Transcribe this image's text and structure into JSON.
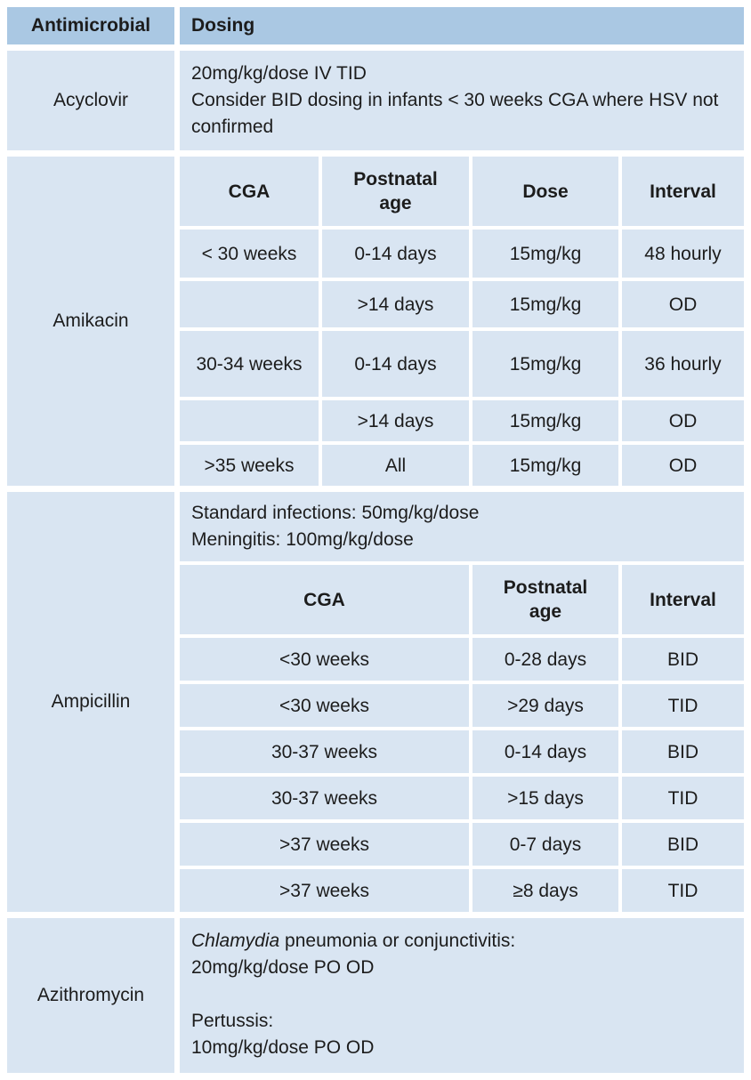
{
  "colors": {
    "header_bg": "#aac8e3",
    "cell_bg": "#d9e5f2",
    "text": "#1c1c1c",
    "page_bg": "#ffffff"
  },
  "header": {
    "antimicrobial": "Antimicrobial",
    "dosing": "Dosing"
  },
  "acyclovir": {
    "name": "Acyclovir",
    "line1": "20mg/kg/dose IV TID",
    "line2": "Consider BID dosing in infants < 30 weeks CGA where HSV not confirmed"
  },
  "amikacin": {
    "name": "Amikacin",
    "headers": [
      "CGA",
      "Postnatal age",
      "Dose",
      "Interval"
    ],
    "rows": [
      [
        "< 30 weeks",
        "0-14 days",
        "15mg/kg",
        "48 hourly"
      ],
      [
        "",
        ">14 days",
        "15mg/kg",
        "OD"
      ],
      [
        "30-34 weeks",
        "0-14 days",
        "15mg/kg",
        "36 hourly"
      ],
      [
        "",
        ">14 days",
        "15mg/kg",
        "OD"
      ],
      [
        ">35 weeks",
        "All",
        "15mg/kg",
        "OD"
      ]
    ]
  },
  "ampicillin": {
    "name": "Ampicillin",
    "line1": "Standard infections: 50mg/kg/dose",
    "line2": "Meningitis: 100mg/kg/dose",
    "headers": [
      "CGA",
      "Postnatal age",
      "Interval"
    ],
    "rows": [
      [
        "<30 weeks",
        "0-28 days",
        "BID"
      ],
      [
        "<30 weeks",
        ">29 days",
        "TID"
      ],
      [
        "30-37 weeks",
        "0-14 days",
        "BID"
      ],
      [
        "30-37 weeks",
        ">15 days",
        "TID"
      ],
      [
        ">37 weeks",
        "0-7 days",
        "BID"
      ],
      [
        ">37 weeks",
        "≥8 days",
        "TID"
      ]
    ]
  },
  "azithromycin": {
    "name": "Azithromycin",
    "indication1_italic": "Chlamydia",
    "indication1_rest": " pneumonia or conjunctivitis:",
    "dose1": "20mg/kg/dose PO OD",
    "indication2": "Pertussis:",
    "dose2": "10mg/kg/dose PO OD"
  }
}
